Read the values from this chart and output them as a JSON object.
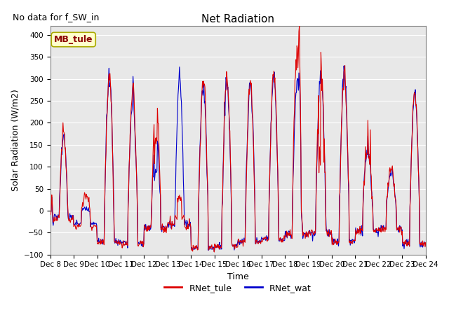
{
  "title": "Net Radiation",
  "xlabel": "Time",
  "ylabel": "Solar Radiation (W/m2)",
  "ylim": [
    -100,
    420
  ],
  "yticks": [
    -100,
    -50,
    0,
    50,
    100,
    150,
    200,
    250,
    300,
    350,
    400
  ],
  "no_data_text": "No data for f_SW_in",
  "legend_box_text": "MB_tule",
  "color_tule": "#dd0000",
  "color_wat": "#0000cc",
  "bg_color": "#e8e8e8",
  "linewidth": 0.8,
  "title_fontsize": 11,
  "tick_fontsize": 7.5,
  "label_fontsize": 9,
  "legend_fontsize": 9,
  "annotation_fontsize": 9
}
